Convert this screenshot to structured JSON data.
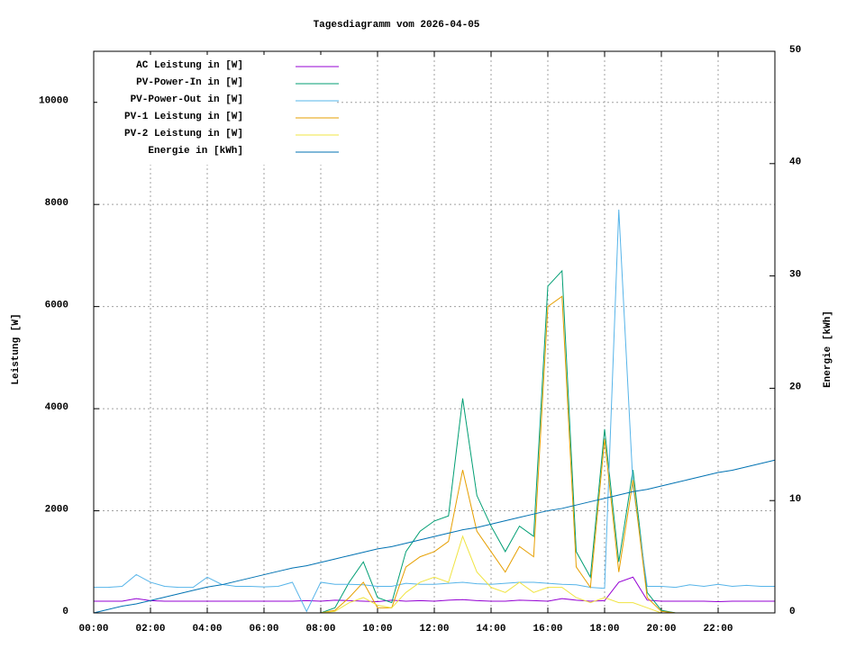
{
  "chart_data": {
    "type": "line",
    "title": "Tagesdiagramm vom 2026-04-05",
    "y_label": "Leistung [W]",
    "y2_label": "Energie [kWh]",
    "x": [
      0,
      0.5,
      1,
      1.5,
      2,
      2.5,
      3,
      3.5,
      4,
      4.5,
      5,
      5.5,
      6,
      6.5,
      7,
      7.5,
      8,
      8.5,
      9,
      9.5,
      10,
      10.5,
      11,
      11.5,
      12,
      12.5,
      13,
      13.5,
      14,
      14.5,
      15,
      15.5,
      16,
      16.5,
      17,
      17.5,
      18,
      18.5,
      19,
      19.5,
      20,
      20.5,
      21,
      21.5,
      22,
      22.5,
      23,
      23.5,
      24
    ],
    "xlim": [
      0,
      24
    ],
    "xticks": [
      {
        "value": 0,
        "label": "00:00"
      },
      {
        "value": 2,
        "label": "02:00"
      },
      {
        "value": 4,
        "label": "04:00"
      },
      {
        "value": 6,
        "label": "06:00"
      },
      {
        "value": 8,
        "label": "08:00"
      },
      {
        "value": 10,
        "label": "10:00"
      },
      {
        "value": 12,
        "label": "12:00"
      },
      {
        "value": 14,
        "label": "14:00"
      },
      {
        "value": 16,
        "label": "16:00"
      },
      {
        "value": 18,
        "label": "18:00"
      },
      {
        "value": 20,
        "label": "20:00"
      },
      {
        "value": 22,
        "label": "22:00"
      }
    ],
    "ylim": [
      0,
      11000
    ],
    "yticks": [
      0,
      2000,
      4000,
      6000,
      8000,
      10000
    ],
    "y2lim": [
      0,
      50
    ],
    "y2ticks": [
      0,
      10,
      20,
      30,
      40,
      50
    ],
    "grid": true,
    "legend": "top-left",
    "series": [
      {
        "name": "AC Leistung in [W]",
        "color": "#9400d3",
        "values": [
          230,
          230,
          230,
          280,
          240,
          230,
          230,
          230,
          230,
          230,
          230,
          230,
          230,
          230,
          230,
          240,
          230,
          250,
          240,
          230,
          220,
          250,
          230,
          240,
          230,
          250,
          260,
          240,
          230,
          230,
          250,
          240,
          230,
          280,
          250,
          230,
          240,
          600,
          700,
          250,
          230,
          230,
          230,
          230,
          220,
          230,
          230,
          230,
          230
        ]
      },
      {
        "name": "PV-Power-In in [W]",
        "color": "#009e73",
        "values": [
          0,
          0,
          0,
          0,
          0,
          0,
          0,
          0,
          0,
          0,
          0,
          0,
          0,
          0,
          0,
          0,
          0,
          100,
          600,
          1000,
          300,
          200,
          1200,
          1600,
          1800,
          1900,
          4200,
          2300,
          1700,
          1200,
          1700,
          1500,
          6400,
          6700,
          1200,
          700,
          3600,
          1000,
          2800,
          400,
          50,
          0,
          0,
          0,
          0,
          0,
          0,
          0,
          0
        ]
      },
      {
        "name": "PV-Power-Out in [W]",
        "color": "#56b4e9",
        "values": [
          500,
          500,
          520,
          750,
          600,
          520,
          500,
          500,
          700,
          560,
          520,
          520,
          510,
          520,
          600,
          30,
          600,
          560,
          560,
          550,
          520,
          520,
          580,
          560,
          560,
          580,
          600,
          570,
          560,
          580,
          600,
          600,
          580,
          560,
          550,
          500,
          480,
          7900,
          2500,
          520,
          520,
          500,
          550,
          520,
          560,
          520,
          540,
          520,
          520
        ]
      },
      {
        "name": "PV-1 Leistung in [W]",
        "color": "#e69f00",
        "values": [
          0,
          0,
          0,
          0,
          0,
          0,
          0,
          0,
          0,
          0,
          0,
          0,
          0,
          0,
          0,
          0,
          0,
          50,
          300,
          600,
          100,
          100,
          900,
          1100,
          1200,
          1400,
          2800,
          1600,
          1200,
          800,
          1300,
          1100,
          6000,
          6200,
          900,
          500,
          3400,
          800,
          2600,
          300,
          30,
          0,
          0,
          0,
          0,
          0,
          0,
          0,
          0
        ]
      },
      {
        "name": "PV-2 Leistung in [W]",
        "color": "#f0e442",
        "values": [
          0,
          0,
          0,
          0,
          0,
          0,
          0,
          0,
          0,
          0,
          0,
          0,
          0,
          0,
          0,
          0,
          0,
          30,
          200,
          300,
          150,
          100,
          400,
          600,
          700,
          600,
          1500,
          800,
          500,
          400,
          600,
          400,
          500,
          500,
          300,
          200,
          300,
          200,
          200,
          100,
          0,
          0,
          0,
          0,
          0,
          0,
          0,
          0,
          0
        ]
      },
      {
        "name": "Energie in [kWh]",
        "color": "#0072b2",
        "axis": "y2",
        "values": [
          0,
          0.3,
          0.6,
          0.8,
          1.1,
          1.4,
          1.7,
          2.0,
          2.3,
          2.5,
          2.8,
          3.1,
          3.4,
          3.7,
          4.0,
          4.2,
          4.5,
          4.8,
          5.1,
          5.4,
          5.7,
          5.9,
          6.2,
          6.5,
          6.8,
          7.1,
          7.4,
          7.6,
          7.9,
          8.2,
          8.5,
          8.8,
          9.1,
          9.3,
          9.6,
          9.9,
          10.2,
          10.5,
          10.8,
          11.0,
          11.3,
          11.6,
          11.9,
          12.2,
          12.5,
          12.7,
          13.0,
          13.3,
          13.6
        ]
      }
    ]
  }
}
